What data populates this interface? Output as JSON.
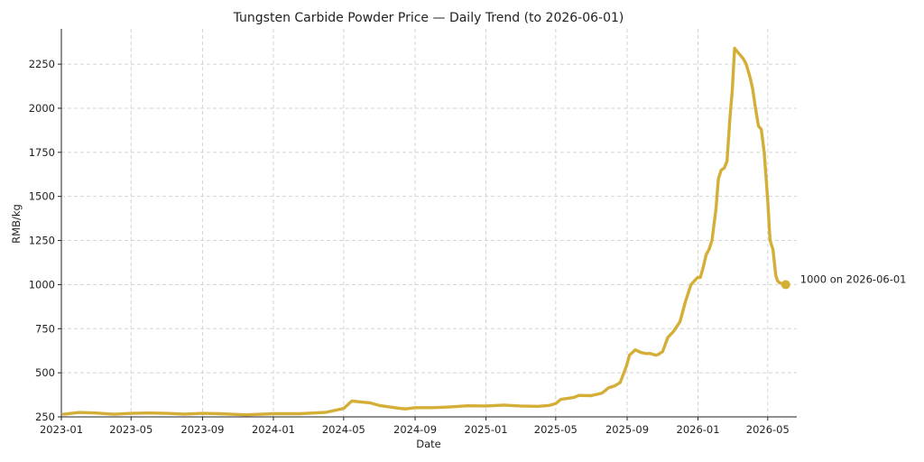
{
  "chart_data": {
    "type": "line",
    "title": "Tungsten Carbide Powder Price — Daily Trend (to 2026-06-01)",
    "xlabel": "Date",
    "ylabel": "RMB/kg",
    "xlim": [
      "2023-01-01",
      "2026-06-20"
    ],
    "ylim": [
      250,
      2450
    ],
    "grid": true,
    "color": "#d4af37",
    "x_ticks": [
      "2023-01",
      "2023-05",
      "2023-09",
      "2024-01",
      "2024-05",
      "2024-09",
      "2025-01",
      "2025-05",
      "2025-09",
      "2026-01",
      "2026-05"
    ],
    "y_ticks": [
      250,
      500,
      750,
      1000,
      1250,
      1500,
      1750,
      2000,
      2250
    ],
    "series": [
      {
        "x": [
          "2023-01-05",
          "2023-02-01",
          "2023-03-01",
          "2023-04-01",
          "2023-05-01",
          "2023-06-01",
          "2023-07-01",
          "2023-08-01",
          "2023-09-01",
          "2023-10-01",
          "2023-11-15",
          "2024-01-01",
          "2024-02-15",
          "2024-04-01",
          "2024-05-01",
          "2024-05-15",
          "2024-06-15",
          "2024-07-01",
          "2024-08-01",
          "2024-08-15",
          "2024-09-01",
          "2024-10-01",
          "2024-11-01",
          "2024-12-01",
          "2025-01-01",
          "2025-02-01",
          "2025-03-01",
          "2025-04-01",
          "2025-04-20",
          "2025-05-01",
          "2025-05-10",
          "2025-06-01",
          "2025-06-10",
          "2025-07-01",
          "2025-07-20",
          "2025-07-31",
          "2025-08-10",
          "2025-08-20",
          "2025-08-31",
          "2025-09-05",
          "2025-09-15",
          "2025-09-25",
          "2025-10-05",
          "2025-10-10",
          "2025-10-20",
          "2025-10-25",
          "2025-11-01",
          "2025-11-10",
          "2025-11-20",
          "2025-11-25",
          "2025-12-01",
          "2025-12-10",
          "2025-12-20",
          "2025-12-31",
          "2026-01-05",
          "2026-01-10",
          "2026-01-15",
          "2026-01-20",
          "2026-01-25",
          "2026-02-01",
          "2026-02-05",
          "2026-02-10",
          "2026-02-15",
          "2026-02-20",
          "2026-02-25",
          "2026-03-01",
          "2026-03-05",
          "2026-03-10",
          "2026-03-15",
          "2026-03-20",
          "2026-03-25",
          "2026-04-01",
          "2026-04-05",
          "2026-04-10",
          "2026-04-15",
          "2026-04-20",
          "2026-04-25",
          "2026-05-01",
          "2026-05-05",
          "2026-05-10",
          "2026-05-15",
          "2026-05-18",
          "2026-05-22",
          "2026-05-26",
          "2026-05-29",
          "2026-06-01"
        ],
        "values": [
          265,
          275,
          272,
          265,
          270,
          272,
          270,
          266,
          270,
          268,
          262,
          268,
          268,
          276,
          298,
          340,
          330,
          315,
          300,
          295,
          302,
          302,
          307,
          313,
          312,
          317,
          312,
          310,
          315,
          325,
          350,
          360,
          372,
          370,
          385,
          415,
          425,
          445,
          540,
          600,
          630,
          615,
          608,
          610,
          600,
          605,
          620,
          700,
          735,
          760,
          790,
          900,
          1000,
          1040,
          1040,
          1100,
          1170,
          1200,
          1250,
          1430,
          1600,
          1650,
          1660,
          1700,
          1950,
          2100,
          2340,
          2320,
          2300,
          2280,
          2250,
          2170,
          2110,
          2000,
          1900,
          1880,
          1750,
          1480,
          1250,
          1200,
          1050,
          1020,
          1010,
          1005,
          1000,
          1000
        ]
      }
    ],
    "annotation": "1000 on 2026-06-01"
  }
}
